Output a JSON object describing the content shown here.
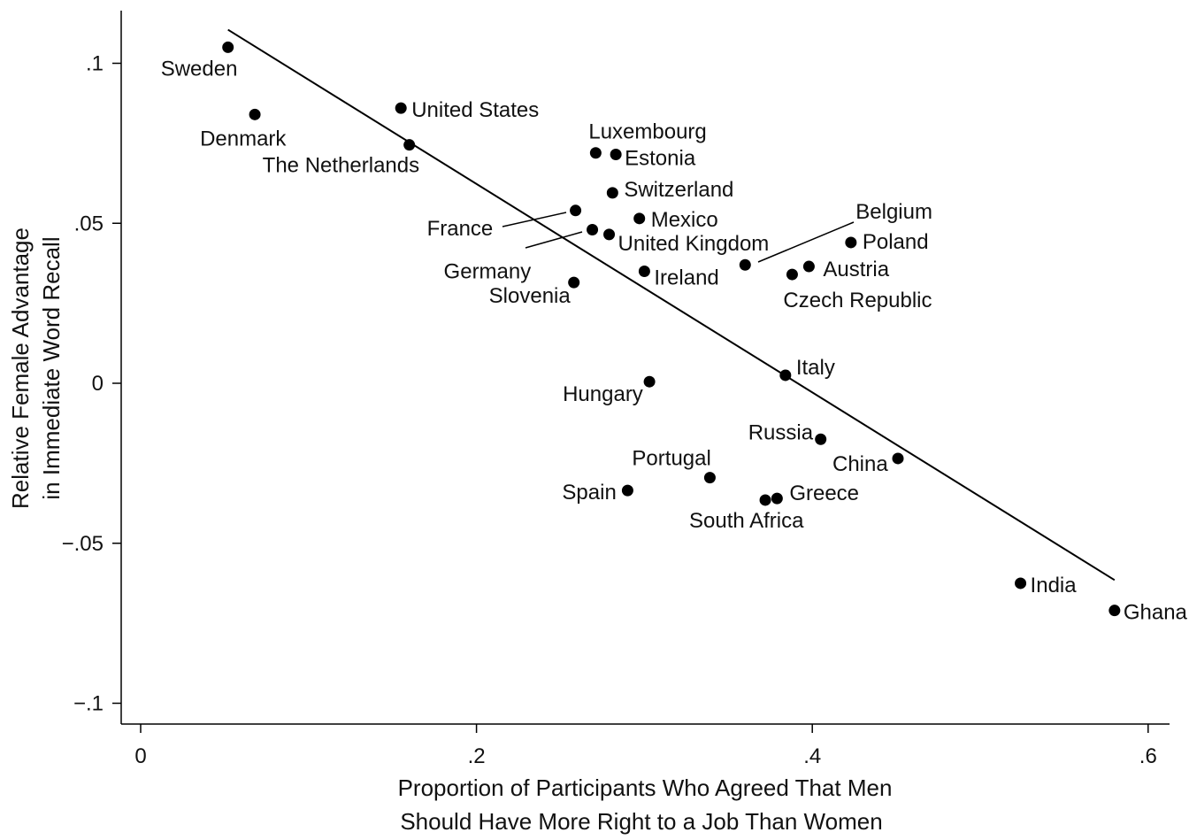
{
  "chart_data": {
    "type": "scatter",
    "title": "",
    "xlabel_lines": [
      "Proportion of Participants Who Agreed That Men",
      "Should Have More Right to a Job Than Women"
    ],
    "ylabel_lines": [
      "Relative Female Advantage",
      "in Immediate Word Recall"
    ],
    "xlim": [
      -0.012,
      0.6
    ],
    "ylim": [
      -0.107,
      0.116
    ],
    "xticks": [
      {
        "value": 0,
        "label": "0"
      },
      {
        "value": 0.2,
        "label": ".2"
      },
      {
        "value": 0.4,
        "label": ".4"
      },
      {
        "value": 0.6,
        "label": ".6"
      }
    ],
    "yticks": [
      {
        "value": 0.1,
        "label": ".1"
      },
      {
        "value": 0.05,
        "label": ".05"
      },
      {
        "value": 0,
        "label": "0"
      },
      {
        "value": -0.05,
        "label": "−.05"
      },
      {
        "value": -0.1,
        "label": "−.1"
      }
    ],
    "grid": false,
    "marker_color": "#000000",
    "fit_line": {
      "x": [
        0.052,
        0.58
      ],
      "y": [
        0.1105,
        -0.0615
      ]
    },
    "points": [
      {
        "name": "Sweden",
        "x": 0.052,
        "y": 0.105
      },
      {
        "name": "Denmark",
        "x": 0.068,
        "y": 0.084
      },
      {
        "name": "United States",
        "x": 0.155,
        "y": 0.086
      },
      {
        "name": "The Netherlands",
        "x": 0.16,
        "y": 0.0745
      },
      {
        "name": "Luxembourg",
        "x": 0.271,
        "y": 0.072
      },
      {
        "name": "Estonia",
        "x": 0.283,
        "y": 0.0715
      },
      {
        "name": "Switzerland",
        "x": 0.281,
        "y": 0.0595
      },
      {
        "name": "France",
        "x": 0.259,
        "y": 0.054
      },
      {
        "name": "Mexico",
        "x": 0.297,
        "y": 0.0515
      },
      {
        "name": "Germany",
        "x": 0.269,
        "y": 0.048
      },
      {
        "name": "United Kingdom",
        "x": 0.279,
        "y": 0.0465
      },
      {
        "name": "Ireland",
        "x": 0.3,
        "y": 0.035
      },
      {
        "name": "Belgium",
        "x": 0.36,
        "y": 0.037
      },
      {
        "name": "Poland",
        "x": 0.423,
        "y": 0.044
      },
      {
        "name": "Austria",
        "x": 0.398,
        "y": 0.0365
      },
      {
        "name": "Czech Republic",
        "x": 0.388,
        "y": 0.034
      },
      {
        "name": "Slovenia",
        "x": 0.258,
        "y": 0.0315
      },
      {
        "name": "Italy",
        "x": 0.384,
        "y": 0.0025
      },
      {
        "name": "Hungary",
        "x": 0.303,
        "y": 0.0005
      },
      {
        "name": "Russia",
        "x": 0.405,
        "y": -0.0175
      },
      {
        "name": "China",
        "x": 0.451,
        "y": -0.0235
      },
      {
        "name": "Portugal",
        "x": 0.339,
        "y": -0.0295
      },
      {
        "name": "Spain",
        "x": 0.29,
        "y": -0.0335
      },
      {
        "name": "South Africa",
        "x": 0.372,
        "y": -0.0365
      },
      {
        "name": "Greece",
        "x": 0.379,
        "y": -0.036
      },
      {
        "name": "India",
        "x": 0.524,
        "y": -0.0625
      },
      {
        "name": "Ghana",
        "x": 0.58,
        "y": -0.071
      }
    ]
  }
}
